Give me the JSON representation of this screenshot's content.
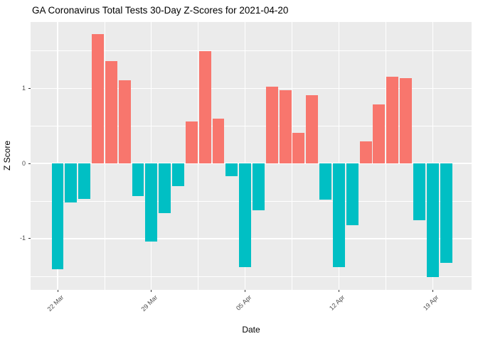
{
  "title": "GA Coronavirus Total Tests 30-Day Z-Scores for 2021-04-20",
  "chart_data": {
    "type": "bar",
    "title": "GA Coronavirus Total Tests 30-Day Z-Scores for 2021-04-20",
    "xlabel": "Date",
    "ylabel": "Z Score",
    "categories": [
      "22 Mar",
      "23 Mar",
      "24 Mar",
      "25 Mar",
      "26 Mar",
      "27 Mar",
      "28 Mar",
      "29 Mar",
      "30 Mar",
      "31 Mar",
      "01 Apr",
      "02 Apr",
      "03 Apr",
      "04 Apr",
      "05 Apr",
      "06 Apr",
      "07 Apr",
      "08 Apr",
      "09 Apr",
      "10 Apr",
      "11 Apr",
      "12 Apr",
      "13 Apr",
      "14 Apr",
      "15 Apr",
      "16 Apr",
      "17 Apr",
      "18 Apr",
      "19 Apr",
      "20 Apr"
    ],
    "values": [
      -1.41,
      -0.52,
      -0.47,
      1.72,
      1.36,
      1.11,
      -0.43,
      -1.04,
      -0.66,
      -0.3,
      0.56,
      1.49,
      0.6,
      -0.17,
      -1.38,
      -0.62,
      1.02,
      0.97,
      0.41,
      0.91,
      -0.48,
      -1.38,
      -0.82,
      0.29,
      0.78,
      1.15,
      1.13,
      -0.75,
      -1.51,
      -1.32
    ],
    "x_tick_labels": [
      "22 Mar",
      "29 Mar",
      "05 Apr",
      "12 Apr",
      "19 Apr"
    ],
    "x_tick_indices": [
      0,
      7,
      14,
      21,
      28
    ],
    "y_tick_labels": [
      "-1",
      "0",
      "1"
    ],
    "y_ticks": [
      -1,
      0,
      1
    ],
    "y_minor_ticks": [
      -1.5,
      -0.5,
      0.5,
      1.5
    ],
    "x_minor_indices": [
      3.5,
      10.5,
      17.5,
      24.5
    ],
    "ylim": [
      -1.68,
      1.88
    ],
    "grid": true,
    "legend": "none",
    "colors": {
      "positive_bar": "#F8766D",
      "negative_bar": "#00BFC4",
      "panel_background": "#EBEBEB",
      "gridline": "#FFFFFF",
      "tick_text": "#4D4D4D",
      "title_text": "#000000"
    }
  }
}
